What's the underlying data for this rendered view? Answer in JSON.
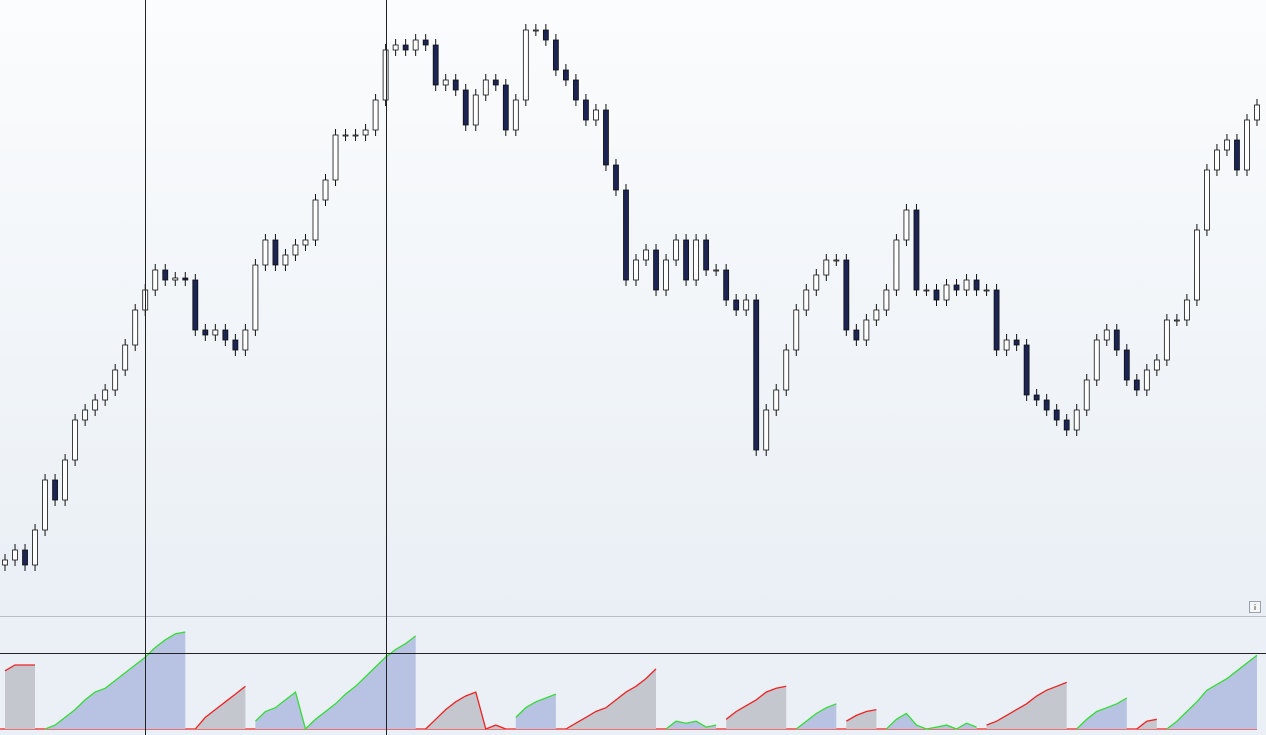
{
  "chart_data": [
    {
      "type": "candlestick",
      "ylim": [
        0,
        615
      ],
      "up_color": "#ffffff",
      "down_color": "#1b2452",
      "wick_color": "#111111",
      "markers": [
        14,
        38
      ],
      "open": [
        50,
        55,
        65,
        50,
        85,
        135,
        115,
        155,
        195,
        205,
        215,
        225,
        245,
        270,
        305,
        325,
        345,
        335,
        337,
        335,
        285,
        280,
        285,
        275,
        265,
        285,
        350,
        375,
        350,
        360,
        370,
        375,
        415,
        435,
        480,
        480,
        480,
        485,
        515,
        565,
        570,
        565,
        575,
        570,
        530,
        535,
        525,
        490,
        520,
        535,
        530,
        485,
        515,
        585,
        585,
        575,
        545,
        535,
        515,
        495,
        505,
        450,
        425,
        335,
        355,
        365,
        325,
        355,
        375,
        335,
        375,
        345,
        345,
        315,
        305,
        315,
        165,
        205,
        225,
        265,
        305,
        325,
        340,
        355,
        355,
        285,
        275,
        295,
        305,
        325,
        375,
        405,
        325,
        325,
        315,
        330,
        325,
        335,
        325,
        325,
        265,
        275,
        270,
        220,
        215,
        205,
        195,
        185,
        205,
        235,
        275,
        285,
        265,
        235,
        225,
        245,
        255,
        295,
        295,
        315,
        385,
        445,
        465,
        475,
        445,
        495
      ],
      "high": [
        61,
        71,
        71,
        91,
        141,
        141,
        161,
        201,
        211,
        221,
        231,
        251,
        276,
        311,
        331,
        351,
        351,
        343,
        343,
        341,
        291,
        291,
        291,
        281,
        291,
        356,
        381,
        381,
        366,
        376,
        381,
        421,
        441,
        486,
        486,
        486,
        491,
        521,
        571,
        576,
        576,
        581,
        581,
        576,
        541,
        541,
        531,
        526,
        541,
        541,
        536,
        521,
        591,
        591,
        591,
        581,
        551,
        541,
        521,
        511,
        511,
        456,
        431,
        361,
        371,
        371,
        361,
        381,
        381,
        381,
        381,
        351,
        351,
        321,
        321,
        321,
        211,
        231,
        271,
        311,
        331,
        346,
        361,
        361,
        361,
        291,
        301,
        311,
        331,
        381,
        411,
        411,
        331,
        331,
        336,
        336,
        341,
        341,
        331,
        331,
        281,
        281,
        276,
        226,
        221,
        211,
        201,
        211,
        241,
        281,
        291,
        291,
        271,
        241,
        251,
        261,
        301,
        301,
        321,
        391,
        451,
        471,
        481,
        481,
        501,
        516
      ],
      "low": [
        44,
        49,
        44,
        44,
        79,
        109,
        109,
        149,
        189,
        199,
        209,
        219,
        239,
        264,
        299,
        319,
        329,
        329,
        329,
        279,
        274,
        274,
        269,
        259,
        259,
        279,
        344,
        344,
        344,
        354,
        364,
        369,
        409,
        429,
        474,
        474,
        474,
        479,
        509,
        559,
        559,
        559,
        564,
        524,
        524,
        519,
        484,
        484,
        514,
        524,
        479,
        479,
        509,
        579,
        569,
        539,
        529,
        509,
        489,
        489,
        444,
        419,
        329,
        329,
        349,
        319,
        319,
        349,
        329,
        329,
        339,
        339,
        309,
        299,
        299,
        159,
        159,
        199,
        219,
        259,
        299,
        319,
        334,
        349,
        279,
        269,
        269,
        289,
        299,
        319,
        369,
        319,
        319,
        309,
        309,
        319,
        319,
        319,
        319,
        259,
        259,
        264,
        214,
        209,
        199,
        189,
        179,
        179,
        199,
        229,
        269,
        259,
        229,
        219,
        219,
        239,
        249,
        289,
        289,
        309,
        379,
        439,
        459,
        439,
        439,
        489
      ],
      "close": [
        55,
        65,
        50,
        85,
        135,
        115,
        155,
        195,
        205,
        215,
        225,
        245,
        270,
        305,
        325,
        345,
        335,
        337,
        335,
        285,
        280,
        285,
        275,
        265,
        285,
        350,
        375,
        350,
        360,
        370,
        375,
        415,
        435,
        480,
        480,
        480,
        485,
        515,
        565,
        570,
        565,
        575,
        570,
        530,
        535,
        525,
        490,
        520,
        535,
        530,
        485,
        515,
        585,
        585,
        575,
        545,
        535,
        515,
        495,
        505,
        450,
        425,
        335,
        355,
        365,
        325,
        355,
        375,
        335,
        375,
        345,
        345,
        315,
        305,
        315,
        165,
        205,
        225,
        265,
        305,
        325,
        340,
        355,
        355,
        285,
        275,
        295,
        305,
        325,
        375,
        405,
        325,
        325,
        315,
        330,
        325,
        335,
        325,
        325,
        265,
        275,
        270,
        220,
        215,
        205,
        195,
        185,
        205,
        235,
        275,
        285,
        265,
        235,
        225,
        245,
        255,
        295,
        295,
        315,
        385,
        445,
        465,
        475,
        445,
        495,
        510
      ]
    },
    {
      "type": "area",
      "ylim": [
        0,
        100
      ],
      "hline": 78,
      "baseline_color": "#ee2222",
      "series": [
        {
          "color": "#33dd33",
          "fill": "#b8c3e3",
          "values": [
            null,
            null,
            null,
            null,
            0,
            4,
            12,
            20,
            30,
            38,
            42,
            50,
            58,
            66,
            74,
            84,
            92,
            98,
            100,
            null,
            null,
            null,
            null,
            null,
            null,
            8,
            18,
            22,
            30,
            38,
            0,
            10,
            18,
            26,
            36,
            44,
            54,
            64,
            74,
            82,
            88,
            96,
            null,
            null,
            null,
            null,
            null,
            null,
            null,
            null,
            null,
            12,
            22,
            28,
            32,
            36,
            null,
            null,
            null,
            null,
            null,
            null,
            null,
            null,
            null,
            null,
            0,
            8,
            6,
            8,
            2,
            4,
            null,
            null,
            null,
            null,
            null,
            null,
            null,
            0,
            8,
            16,
            22,
            26,
            null,
            null,
            null,
            null,
            0,
            10,
            16,
            4,
            0,
            2,
            4,
            0,
            6,
            2,
            null,
            null,
            null,
            null,
            null,
            null,
            null,
            null,
            null,
            0,
            10,
            18,
            22,
            26,
            32,
            null,
            null,
            null,
            0,
            8,
            18,
            28,
            40,
            46,
            52,
            60,
            68,
            76
          ]
        },
        {
          "color": "#ee2222",
          "fill": "#c4c7cd",
          "values": [
            60,
            66,
            66,
            66,
            null,
            null,
            null,
            null,
            null,
            null,
            null,
            null,
            null,
            null,
            null,
            null,
            null,
            null,
            null,
            0,
            12,
            20,
            28,
            36,
            44,
            null,
            null,
            null,
            null,
            null,
            null,
            null,
            null,
            null,
            null,
            null,
            null,
            null,
            null,
            null,
            null,
            null,
            0,
            10,
            20,
            28,
            34,
            38,
            0,
            4,
            0,
            null,
            null,
            null,
            null,
            null,
            0,
            6,
            12,
            18,
            22,
            30,
            38,
            44,
            52,
            62,
            null,
            null,
            null,
            null,
            null,
            null,
            10,
            18,
            24,
            30,
            38,
            42,
            44,
            null,
            null,
            null,
            null,
            null,
            8,
            14,
            18,
            20,
            null,
            null,
            null,
            null,
            null,
            null,
            null,
            null,
            null,
            null,
            4,
            8,
            14,
            20,
            26,
            34,
            40,
            44,
            48,
            null,
            null,
            null,
            null,
            null,
            null,
            0,
            8,
            10,
            null,
            null,
            null,
            null,
            null,
            null,
            null,
            null,
            null,
            null
          ]
        }
      ]
    }
  ]
}
